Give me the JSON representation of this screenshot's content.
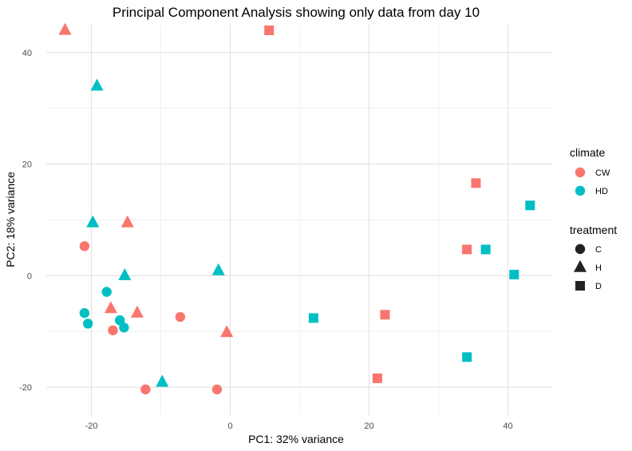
{
  "chart_data": {
    "type": "scatter",
    "title": "Principal Component Analysis showing only data from day 10",
    "xlabel": "PC1: 32% variance",
    "ylabel": "PC2: 18% variance",
    "xlim": [
      -26.5,
      46.5
    ],
    "ylim": [
      -25,
      45
    ],
    "x_ticks": [
      -20,
      0,
      20,
      40
    ],
    "y_ticks": [
      -20,
      0,
      20,
      40
    ],
    "x_tick_labels": [
      "-20",
      "0",
      "20",
      "40"
    ],
    "y_tick_labels": [
      "-20",
      "0",
      "20",
      "40"
    ],
    "grid": true,
    "legend_placement": "right",
    "legends": {
      "color": {
        "title": "climate",
        "entries": [
          {
            "label": "CW",
            "color": "#F8766D"
          },
          {
            "label": "HD",
            "color": "#00BFC4"
          }
        ]
      },
      "shape": {
        "title": "treatment",
        "entries": [
          {
            "label": "C",
            "shape": "circle"
          },
          {
            "label": "H",
            "shape": "triangle"
          },
          {
            "label": "D",
            "shape": "square"
          }
        ]
      }
    },
    "points": [
      {
        "x": -23.8,
        "y": 44.0,
        "climate": "CW",
        "treatment": "H"
      },
      {
        "x": -19.2,
        "y": 34.0,
        "climate": "HD",
        "treatment": "H"
      },
      {
        "x": 5.6,
        "y": 44.0,
        "climate": "CW",
        "treatment": "D"
      },
      {
        "x": -21.0,
        "y": 5.3,
        "climate": "CW",
        "treatment": "C"
      },
      {
        "x": -19.8,
        "y": 9.5,
        "climate": "HD",
        "treatment": "H"
      },
      {
        "x": -14.8,
        "y": 9.5,
        "climate": "CW",
        "treatment": "H"
      },
      {
        "x": -15.2,
        "y": 0.0,
        "climate": "HD",
        "treatment": "H"
      },
      {
        "x": -17.8,
        "y": -2.9,
        "climate": "HD",
        "treatment": "C"
      },
      {
        "x": -17.2,
        "y": -5.9,
        "climate": "CW",
        "treatment": "H"
      },
      {
        "x": -13.4,
        "y": -6.7,
        "climate": "CW",
        "treatment": "H"
      },
      {
        "x": -21.0,
        "y": -6.7,
        "climate": "HD",
        "treatment": "C"
      },
      {
        "x": -20.5,
        "y": -8.6,
        "climate": "HD",
        "treatment": "C"
      },
      {
        "x": -15.9,
        "y": -8.0,
        "climate": "HD",
        "treatment": "C"
      },
      {
        "x": -15.3,
        "y": -9.3,
        "climate": "HD",
        "treatment": "C"
      },
      {
        "x": -16.9,
        "y": -9.8,
        "climate": "CW",
        "treatment": "C"
      },
      {
        "x": -7.2,
        "y": -7.4,
        "climate": "CW",
        "treatment": "C"
      },
      {
        "x": -1.7,
        "y": 0.9,
        "climate": "HD",
        "treatment": "H"
      },
      {
        "x": -0.5,
        "y": -10.2,
        "climate": "CW",
        "treatment": "H"
      },
      {
        "x": -12.2,
        "y": -20.4,
        "climate": "CW",
        "treatment": "C"
      },
      {
        "x": -9.8,
        "y": -19.1,
        "climate": "HD",
        "treatment": "H"
      },
      {
        "x": -1.9,
        "y": -20.4,
        "climate": "CW",
        "treatment": "C"
      },
      {
        "x": 12.0,
        "y": -7.6,
        "climate": "HD",
        "treatment": "D"
      },
      {
        "x": 22.3,
        "y": -7.0,
        "climate": "CW",
        "treatment": "D"
      },
      {
        "x": 21.2,
        "y": -18.4,
        "climate": "CW",
        "treatment": "D"
      },
      {
        "x": 34.1,
        "y": -14.6,
        "climate": "HD",
        "treatment": "D"
      },
      {
        "x": 34.1,
        "y": 4.7,
        "climate": "CW",
        "treatment": "D"
      },
      {
        "x": 35.4,
        "y": 16.6,
        "climate": "CW",
        "treatment": "D"
      },
      {
        "x": 36.8,
        "y": 4.7,
        "climate": "HD",
        "treatment": "D"
      },
      {
        "x": 40.9,
        "y": 0.2,
        "climate": "HD",
        "treatment": "D"
      },
      {
        "x": 43.2,
        "y": 12.6,
        "climate": "HD",
        "treatment": "D"
      }
    ]
  }
}
